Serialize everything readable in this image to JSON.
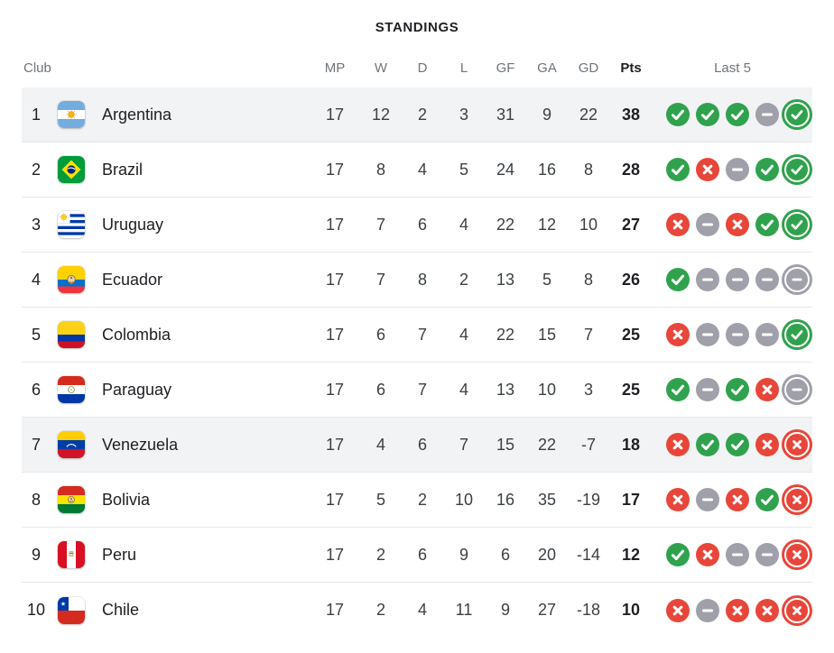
{
  "title": "STANDINGS",
  "columns": {
    "club": "Club",
    "mp": "MP",
    "w": "W",
    "d": "D",
    "l": "L",
    "gf": "GF",
    "ga": "GA",
    "gd": "GD",
    "pts": "Pts",
    "last5": "Last 5"
  },
  "colors": {
    "win": "#30a24e",
    "loss": "#e8463a",
    "draw": "#9fa0a9",
    "row_highlight": "#f1f3f4",
    "divider": "#e8e8e8",
    "header_text": "#70757a",
    "text": "#202124"
  },
  "rows": [
    {
      "rank": "1",
      "team": "Argentina",
      "mp": "17",
      "w": "12",
      "d": "2",
      "l": "3",
      "gf": "31",
      "ga": "9",
      "gd": "22",
      "pts": "38",
      "last5": [
        "W",
        "W",
        "W",
        "D",
        "W"
      ],
      "highlighted": true
    },
    {
      "rank": "2",
      "team": "Brazil",
      "mp": "17",
      "w": "8",
      "d": "4",
      "l": "5",
      "gf": "24",
      "ga": "16",
      "gd": "8",
      "pts": "28",
      "last5": [
        "W",
        "L",
        "D",
        "W",
        "W"
      ],
      "highlighted": false
    },
    {
      "rank": "3",
      "team": "Uruguay",
      "mp": "17",
      "w": "7",
      "d": "6",
      "l": "4",
      "gf": "22",
      "ga": "12",
      "gd": "10",
      "pts": "27",
      "last5": [
        "L",
        "D",
        "L",
        "W",
        "W"
      ],
      "highlighted": false
    },
    {
      "rank": "4",
      "team": "Ecuador",
      "mp": "17",
      "w": "7",
      "d": "8",
      "l": "2",
      "gf": "13",
      "ga": "5",
      "gd": "8",
      "pts": "26",
      "last5": [
        "W",
        "D",
        "D",
        "D",
        "D"
      ],
      "highlighted": false
    },
    {
      "rank": "5",
      "team": "Colombia",
      "mp": "17",
      "w": "6",
      "d": "7",
      "l": "4",
      "gf": "22",
      "ga": "15",
      "gd": "7",
      "pts": "25",
      "last5": [
        "L",
        "D",
        "D",
        "D",
        "W"
      ],
      "highlighted": false
    },
    {
      "rank": "6",
      "team": "Paraguay",
      "mp": "17",
      "w": "6",
      "d": "7",
      "l": "4",
      "gf": "13",
      "ga": "10",
      "gd": "3",
      "pts": "25",
      "last5": [
        "W",
        "D",
        "W",
        "L",
        "D"
      ],
      "highlighted": false
    },
    {
      "rank": "7",
      "team": "Venezuela",
      "mp": "17",
      "w": "4",
      "d": "6",
      "l": "7",
      "gf": "15",
      "ga": "22",
      "gd": "-7",
      "pts": "18",
      "last5": [
        "L",
        "W",
        "W",
        "L",
        "L"
      ],
      "highlighted": true
    },
    {
      "rank": "8",
      "team": "Bolivia",
      "mp": "17",
      "w": "5",
      "d": "2",
      "l": "10",
      "gf": "16",
      "ga": "35",
      "gd": "-19",
      "pts": "17",
      "last5": [
        "L",
        "D",
        "L",
        "W",
        "L"
      ],
      "highlighted": false
    },
    {
      "rank": "9",
      "team": "Peru",
      "mp": "17",
      "w": "2",
      "d": "6",
      "l": "9",
      "gf": "6",
      "ga": "20",
      "gd": "-14",
      "pts": "12",
      "last5": [
        "W",
        "L",
        "D",
        "D",
        "L"
      ],
      "highlighted": false
    },
    {
      "rank": "10",
      "team": "Chile",
      "mp": "17",
      "w": "2",
      "d": "4",
      "l": "11",
      "gf": "9",
      "ga": "27",
      "gd": "-18",
      "pts": "10",
      "last5": [
        "L",
        "D",
        "L",
        "L",
        "L"
      ],
      "highlighted": false
    }
  ]
}
